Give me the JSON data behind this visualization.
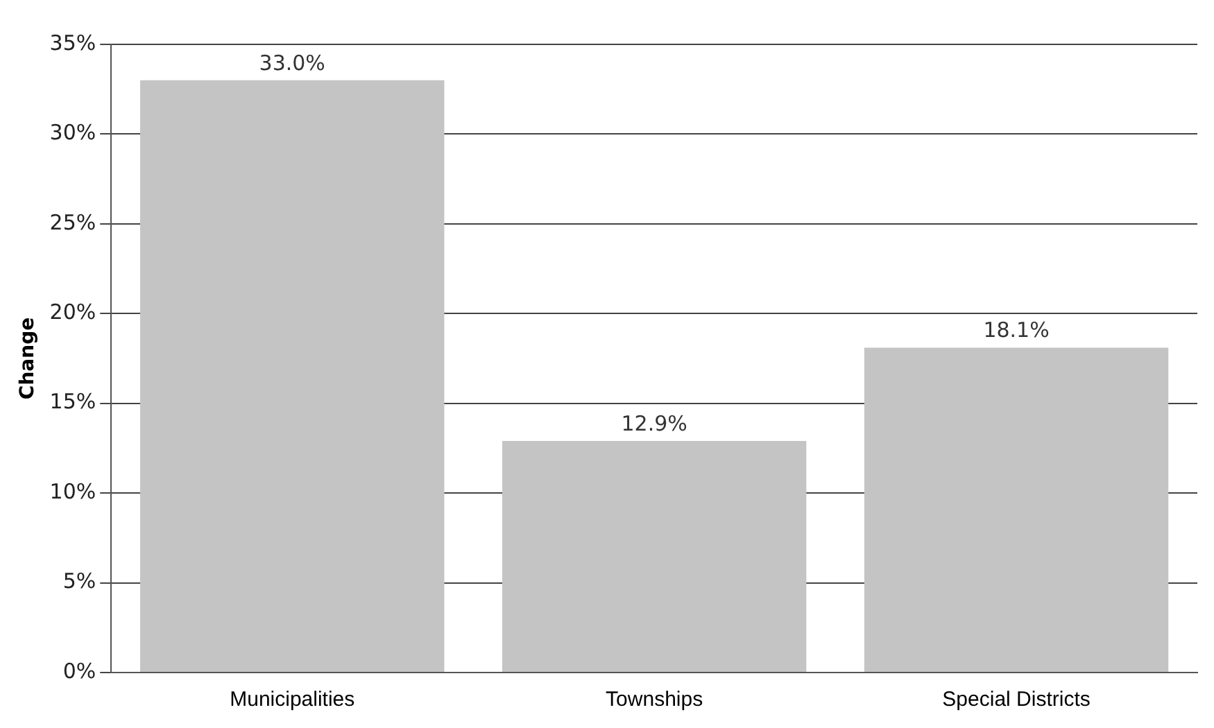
{
  "chart_data": {
    "type": "bar",
    "ylabel": "Change",
    "categories": [
      "Municipalities",
      "Townships",
      "Special Districts"
    ],
    "values": [
      33.0,
      12.9,
      18.1
    ],
    "value_labels": [
      "33.0%",
      "12.9%",
      "18.1%"
    ],
    "color": "#c4c4c4",
    "ylim": [
      0,
      35
    ],
    "yticks": [
      {
        "value": 0,
        "label": "0%"
      },
      {
        "value": 5,
        "label": "5%"
      },
      {
        "value": 10,
        "label": "10%"
      },
      {
        "value": 15,
        "label": "15%"
      },
      {
        "value": 20,
        "label": "20%"
      },
      {
        "value": 25,
        "label": "25%"
      },
      {
        "value": 30,
        "label": "30%"
      },
      {
        "value": 35,
        "label": "35%"
      }
    ],
    "grid": "y",
    "legend": false
  }
}
